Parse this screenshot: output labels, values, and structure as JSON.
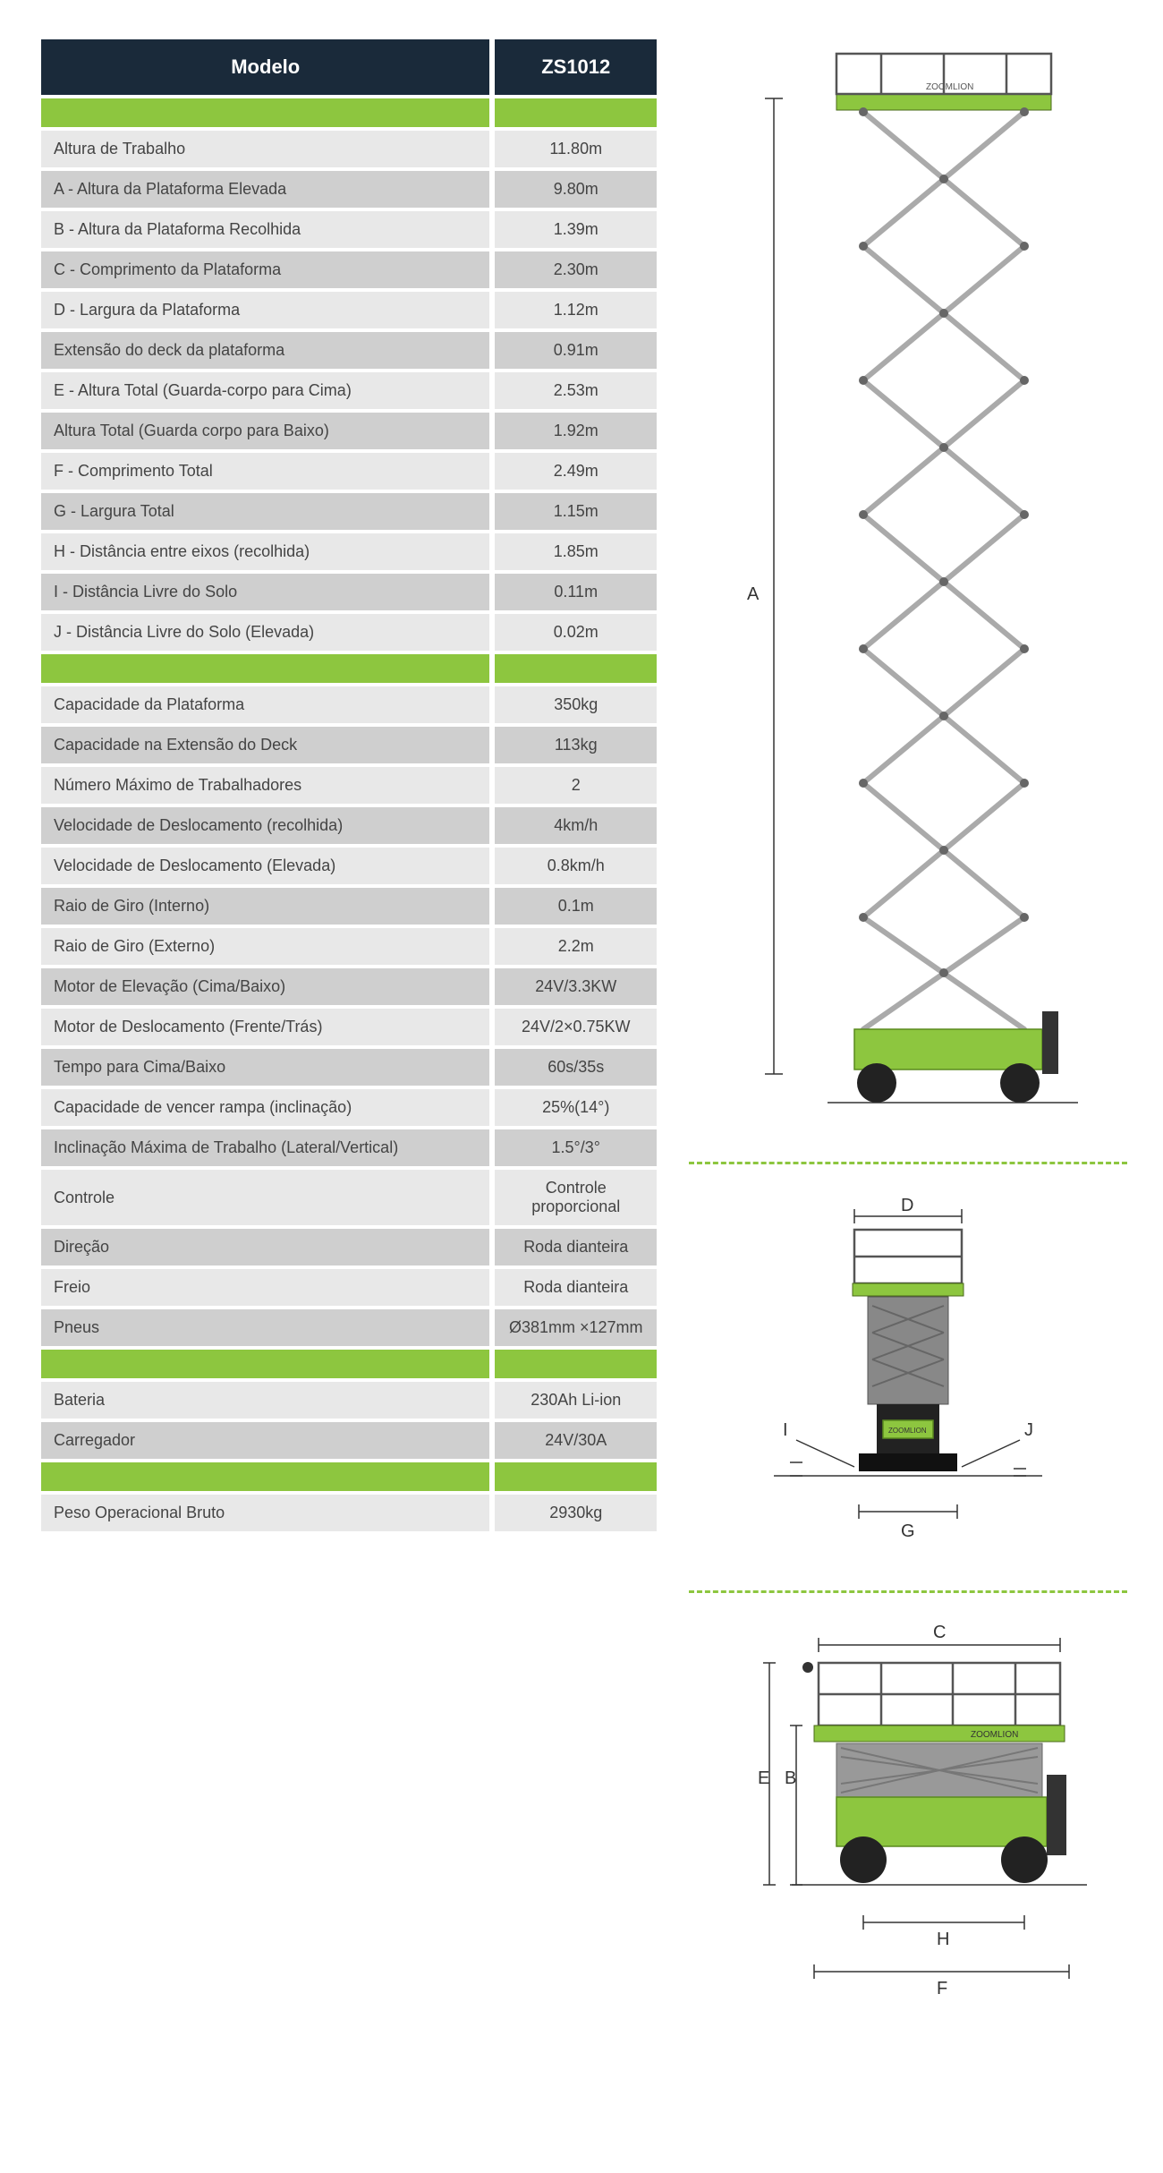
{
  "header": {
    "model_label": "Modelo",
    "model_value": "ZS1012"
  },
  "colors": {
    "header_bg": "#1a2a3a",
    "section_bg": "#8dc63f",
    "row_light": "#e8e8e8",
    "row_dark": "#cfcfcf",
    "accent": "#8dc63f"
  },
  "sections": [
    {
      "rows": [
        {
          "label": "Altura de Trabalho",
          "value": "11.80m"
        },
        {
          "label": "A - Altura da Plataforma Elevada",
          "value": "9.80m"
        },
        {
          "label": "B - Altura da Plataforma Recolhida",
          "value": "1.39m"
        },
        {
          "label": "C - Comprimento da Plataforma",
          "value": "2.30m"
        },
        {
          "label": "D - Largura da Plataforma",
          "value": "1.12m"
        },
        {
          "label": "Extensão do deck da plataforma",
          "value": "0.91m"
        },
        {
          "label": "E - Altura Total (Guarda-corpo para Cima)",
          "value": "2.53m"
        },
        {
          "label": "Altura Total (Guarda corpo para Baixo)",
          "value": "1.92m"
        },
        {
          "label": "F - Comprimento Total",
          "value": "2.49m"
        },
        {
          "label": "G - Largura Total",
          "value": "1.15m"
        },
        {
          "label": "H - Distância entre eixos (recolhida)",
          "value": "1.85m"
        },
        {
          "label": "I - Distância Livre do Solo",
          "value": "0.11m"
        },
        {
          "label": "J - Distância Livre do Solo (Elevada)",
          "value": "0.02m"
        }
      ]
    },
    {
      "rows": [
        {
          "label": "Capacidade da Plataforma",
          "value": "350kg"
        },
        {
          "label": "Capacidade na Extensão do Deck",
          "value": "113kg"
        },
        {
          "label": "Número Máximo de Trabalhadores",
          "value": "2"
        },
        {
          "label": "Velocidade de Deslocamento (recolhida)",
          "value": "4km/h"
        },
        {
          "label": "Velocidade de Deslocamento (Elevada)",
          "value": "0.8km/h"
        },
        {
          "label": "Raio de Giro (Interno)",
          "value": "0.1m"
        },
        {
          "label": "Raio de Giro (Externo)",
          "value": "2.2m"
        },
        {
          "label": "Motor de Elevação (Cima/Baixo)",
          "value": "24V/3.3KW"
        },
        {
          "label": "Motor de Deslocamento (Frente/Trás)",
          "value": "24V/2×0.75KW"
        },
        {
          "label": "Tempo para Cima/Baixo",
          "value": "60s/35s"
        },
        {
          "label": "Capacidade de vencer rampa (inclinação)",
          "value": "25%(14°)"
        },
        {
          "label": "Inclinação Máxima de Trabalho (Lateral/Vertical)",
          "value": "1.5°/3°"
        },
        {
          "label": "Controle",
          "value": "Controle proporcional"
        },
        {
          "label": "Direção",
          "value": "Roda dianteira"
        },
        {
          "label": "Freio",
          "value": "Roda dianteira"
        },
        {
          "label": "Pneus",
          "value": "Ø381mm ×127mm"
        }
      ]
    },
    {
      "rows": [
        {
          "label": "Bateria",
          "value": "230Ah Li-ion"
        },
        {
          "label": "Carregador",
          "value": "24V/30A"
        }
      ]
    },
    {
      "rows": [
        {
          "label": "Peso Operacional Bruto",
          "value": "2930kg"
        }
      ]
    }
  ],
  "diagrams": {
    "side_elevated": {
      "label_A": "A"
    },
    "front": {
      "label_D": "D",
      "label_G": "G",
      "label_I": "I",
      "label_J": "J"
    },
    "side_stowed": {
      "label_B": "B",
      "label_C": "C",
      "label_E": "E",
      "label_F": "F",
      "label_H": "H"
    }
  }
}
